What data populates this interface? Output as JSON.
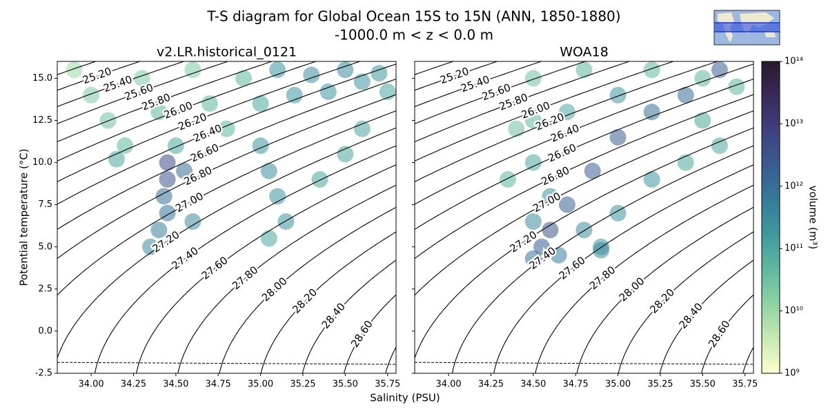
{
  "title": "T-S diagram for Global Ocean 15S to 15N (ANN, 1850-1880)",
  "subtitle": "-1000.0 m < z < 0.0 m",
  "x_label": "Salinity (PSU)",
  "chart_data": [
    {
      "type": "contour",
      "title": "v2.LR.historical_0121",
      "y_label": "Potential temperature (°C)",
      "xlim": [
        33.8,
        35.8
      ],
      "ylim": [
        -2.5,
        16
      ],
      "xticks": [
        {
          "value": 34,
          "label": "34.00"
        },
        34.25,
        {
          "value": 34.5,
          "label": "34.50"
        },
        34.75,
        {
          "value": 35,
          "label": "35.00"
        },
        35.25,
        {
          "value": 35.5,
          "label": "35.50"
        },
        35.75
      ],
      "yticks": [
        -2.5,
        {
          "value": 0,
          "label": "0.0"
        },
        2.5,
        {
          "value": 5,
          "label": "5.0"
        },
        7.5,
        {
          "value": 10,
          "label": "10.0"
        },
        12.5,
        {
          "value": 15,
          "label": "15.0"
        }
      ],
      "levels": [
        25,
        {
          "value": 25.2,
          "label": "25.20"
        },
        {
          "value": 25.4,
          "label": "25.40"
        },
        {
          "value": 25.6,
          "label": "25.60"
        },
        {
          "value": 25.8,
          "label": "25.80"
        },
        {
          "value": 26,
          "label": "26.00"
        },
        {
          "value": 26.2,
          "label": "26.20"
        },
        {
          "value": 26.4,
          "label": "26.40"
        },
        {
          "value": 26.6,
          "label": "26.60"
        },
        {
          "value": 26.8,
          "label": "26.80"
        },
        {
          "value": 27,
          "label": "27.00"
        },
        {
          "value": 27.2,
          "label": "27.20"
        },
        {
          "value": 27.4,
          "label": "27.40"
        },
        {
          "value": 27.6,
          "label": "27.60"
        },
        {
          "value": 27.8,
          "label": "27.80"
        },
        {
          "value": 28,
          "label": "28.00"
        },
        {
          "value": 28.2,
          "label": "28.20"
        },
        {
          "value": 28.4,
          "label": "28.40"
        },
        {
          "value": 28.6,
          "label": "28.60"
        },
        28.8
      ],
      "line_color": "#000000",
      "freezing_line": true,
      "points": {
        "x": [
          33.9,
          34.0,
          34.1,
          34.2,
          34.3,
          34.4,
          34.5,
          34.6,
          34.7,
          34.8,
          34.9,
          35.0,
          35.1,
          35.2,
          35.3,
          35.4,
          35.5,
          35.6,
          35.7,
          35.75,
          34.15,
          34.45,
          34.45,
          34.43,
          34.45,
          34.4,
          34.35,
          34.55,
          34.6,
          35.0,
          35.05,
          35.1,
          35.15,
          35.05,
          35.35,
          35.5,
          35.6
        ],
        "y": [
          15.5,
          14,
          12.5,
          11,
          15,
          13,
          11,
          15.5,
          13.5,
          12,
          15,
          13.5,
          15.5,
          14,
          15.2,
          14.2,
          15.5,
          14.8,
          15.3,
          14.2,
          10.2,
          10,
          9,
          8,
          7,
          6,
          5,
          9.5,
          6.5,
          11,
          9.5,
          8,
          6.5,
          5.5,
          9,
          10.5,
          12
        ],
        "volume": [
          10000000000.0,
          20000000000.0,
          30000000000.0,
          50000000000.0,
          20000000000.0,
          50000000000.0,
          100000000000.0,
          20000000000.0,
          50000000000.0,
          50000000000.0,
          50000000000.0,
          100000000000.0,
          200000000000.0,
          200000000000.0,
          300000000000.0,
          200000000000.0,
          300000000000.0,
          200000000000.0,
          200000000000.0,
          100000000000.0,
          100000000000.0,
          5000000000000.0,
          3000000000000.0,
          1000000000000.0,
          800000000000.0,
          500000000000.0,
          300000000000.0,
          1000000000000.0,
          300000000000.0,
          200000000000.0,
          300000000000.0,
          200000000000.0,
          200000000000.0,
          100000000000.0,
          100000000000.0,
          100000000000.0,
          100000000000.0
        ]
      }
    },
    {
      "type": "contour",
      "title": "WOA18",
      "xlim": [
        33.8,
        35.8
      ],
      "ylim": [
        -2.5,
        16
      ],
      "xticks": [
        {
          "value": 34,
          "label": "34.00"
        },
        34.25,
        {
          "value": 34.5,
          "label": "34.50"
        },
        34.75,
        {
          "value": 35,
          "label": "35.00"
        },
        35.25,
        {
          "value": 35.5,
          "label": "35.50"
        },
        35.75
      ],
      "yticks": [
        -2.5,
        0,
        2.5,
        5,
        7.5,
        10,
        12.5,
        15
      ],
      "levels": [
        25,
        {
          "value": 25.2,
          "label": "25.20"
        },
        {
          "value": 25.4,
          "label": "25.40"
        },
        {
          "value": 25.6,
          "label": "25.60"
        },
        {
          "value": 25.8,
          "label": "25.80"
        },
        {
          "value": 26,
          "label": "26.00"
        },
        {
          "value": 26.2,
          "label": "26.20"
        },
        {
          "value": 26.4,
          "label": "26.40"
        },
        {
          "value": 26.6,
          "label": "26.60"
        },
        {
          "value": 26.8,
          "label": "26.80"
        },
        {
          "value": 27,
          "label": "27.00"
        },
        {
          "value": 27.2,
          "label": "27.20"
        },
        {
          "value": 27.4,
          "label": "27.40"
        },
        {
          "value": 27.6,
          "label": "27.60"
        },
        {
          "value": 27.8,
          "label": "27.80"
        },
        {
          "value": 28,
          "label": "28.00"
        },
        {
          "value": 28.2,
          "label": "28.20"
        },
        {
          "value": 28.4,
          "label": "28.40"
        },
        {
          "value": 28.6,
          "label": "28.60"
        },
        28.8
      ],
      "line_color": "#000000",
      "freezing_line": true,
      "points": {
        "x": [
          34.5,
          34.8,
          35.2,
          35.5,
          35.7,
          34.5,
          34.7,
          35.0,
          34.5,
          34.6,
          34.5,
          34.55,
          34.5,
          34.65,
          34.8,
          34.9,
          35.0,
          35.2,
          35.4,
          35.6,
          34.35,
          34.4,
          35.5,
          34.6,
          34.7,
          34.85,
          35.0,
          35.2,
          35.4,
          35.6,
          34.9
        ],
        "y": [
          15,
          15.5,
          15.5,
          15,
          14.5,
          12.5,
          13,
          14,
          10,
          8,
          6.5,
          5,
          4.3,
          4.5,
          6,
          5,
          7,
          9,
          10,
          11,
          9,
          12,
          12.5,
          6,
          7.5,
          9.5,
          11.5,
          13,
          14,
          15.5,
          4.8
        ],
        "volume": [
          30000000000.0,
          50000000000.0,
          50000000000.0,
          50000000000.0,
          50000000000.0,
          50000000000.0,
          100000000000.0,
          200000000000.0,
          100000000000.0,
          200000000000.0,
          300000000000.0,
          2000000000000.0,
          800000000000.0,
          500000000000.0,
          300000000000.0,
          200000000000.0,
          200000000000.0,
          200000000000.0,
          100000000000.0,
          100000000000.0,
          50000000000.0,
          30000000000.0,
          100000000000.0,
          3000000000000.0,
          2000000000000.0,
          2000000000000.0,
          2000000000000.0,
          1000000000000.0,
          1000000000000.0,
          2000000000000.0,
          300000000000.0
        ]
      }
    }
  ],
  "colorbar": {
    "label": "volume (m³)",
    "log": true,
    "lim": [
      1000000000.0,
      100000000000000.0
    ],
    "ticks": [
      {
        "value": 1000000000.0,
        "label": "10⁹"
      },
      {
        "value": 10000000000.0,
        "label": "10¹⁰"
      },
      {
        "value": 100000000000.0,
        "label": "10¹¹"
      },
      {
        "value": 1000000000000.0,
        "label": "10¹²"
      },
      {
        "value": 10000000000000.0,
        "label": "10¹³"
      },
      {
        "value": 100000000000000.0,
        "label": "10¹⁴"
      }
    ],
    "colormap": [
      "#fdfecc",
      "#c7eab1",
      "#8fd3a3",
      "#5eb8a0",
      "#3e9a9f",
      "#357b99",
      "#3a5c92",
      "#40407e",
      "#3b2a5a",
      "#281a2c"
    ]
  }
}
